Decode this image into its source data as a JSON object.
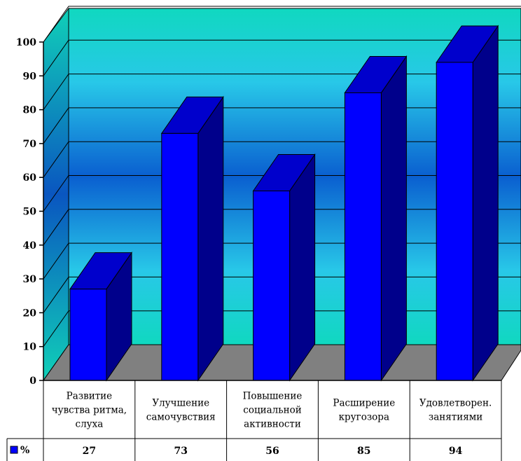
{
  "chart_data": {
    "type": "bar",
    "categories": [
      [
        "Развитие",
        "чувства ритма,",
        "слуха"
      ],
      [
        "Улучшение",
        "самочувствия"
      ],
      [
        "Повышение",
        "социальной",
        "активности"
      ],
      [
        "Расширение",
        "кругозора"
      ],
      [
        "Удовлетворен.",
        "занятиями"
      ]
    ],
    "series": [
      {
        "name": "%",
        "values": [
          27,
          73,
          56,
          85,
          94
        ],
        "color": "#0000ff"
      }
    ],
    "value_labels": [
      "27",
      "73",
      "56",
      "85",
      "94"
    ],
    "yticks": [
      "0",
      "10",
      "20",
      "30",
      "40",
      "50",
      "60",
      "70",
      "80",
      "90",
      "100"
    ],
    "ylim": [
      0,
      100
    ],
    "grid": true,
    "three_d": true,
    "data_table": true,
    "legend": "data-table-left",
    "colors": {
      "bar_front": "#0000ff",
      "bar_top": "#0000cc",
      "bar_side": "#00008b",
      "wall_top": "#10d8c0",
      "wall_mid": "#0a5fd0",
      "floor": "#808080"
    }
  }
}
